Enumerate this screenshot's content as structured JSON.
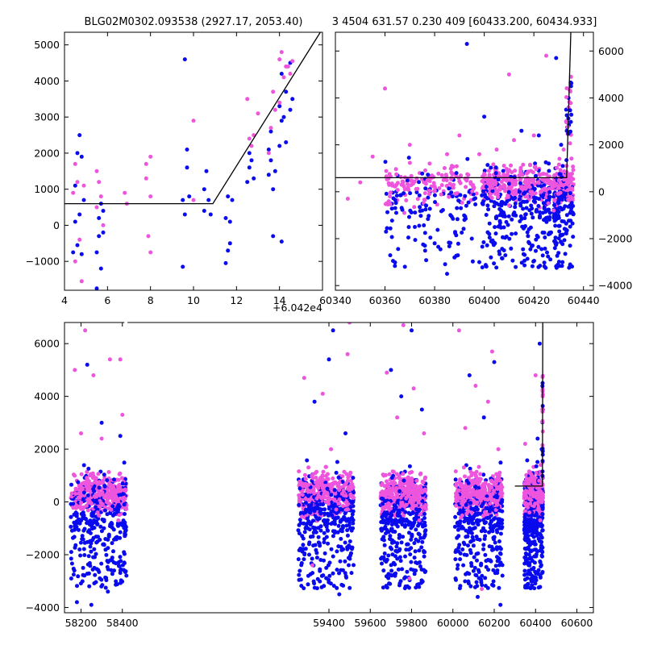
{
  "figure_title_left": "BLG02M0302.093538 (2927.17, 2053.40)",
  "figure_title_right": "3 4504 631.57 0.230 409 [60433.200, 60434.933]",
  "colors": {
    "blue": "#0a0aee",
    "pink": "#ee55dd",
    "line": "#000000"
  },
  "chart_data": [
    {
      "id": "top_left",
      "type": "scatter",
      "title": "BLG02M0302.093538 (2927.17, 2053.40)",
      "x_offset_label": "+6.042e4",
      "xlim": [
        4,
        16
      ],
      "ylim": [
        -1800,
        5350
      ],
      "xticks": [
        4,
        6,
        8,
        10,
        12,
        14
      ],
      "yticks": [
        -1000,
        0,
        1000,
        2000,
        3000,
        4000,
        5000
      ],
      "series": [
        {
          "color": "blue",
          "points": [
            [
              4.4,
              -750
            ],
            [
              4.5,
              100
            ],
            [
              4.5,
              1100
            ],
            [
              4.6,
              2000
            ],
            [
              4.6,
              -550
            ],
            [
              4.7,
              2500
            ],
            [
              4.7,
              300
            ],
            [
              4.8,
              1900
            ],
            [
              4.8,
              -800
            ],
            [
              4.9,
              700
            ],
            [
              5.5,
              -1750
            ],
            [
              5.5,
              -750
            ],
            [
              5.6,
              -300
            ],
            [
              5.6,
              200
            ],
            [
              5.7,
              -1200
            ],
            [
              5.7,
              600
            ],
            [
              5.8,
              -200
            ],
            [
              5.8,
              400
            ],
            [
              9.5,
              700
            ],
            [
              9.5,
              -1150
            ],
            [
              9.6,
              4600
            ],
            [
              9.6,
              300
            ],
            [
              9.7,
              1600
            ],
            [
              9.7,
              2100
            ],
            [
              9.8,
              800
            ],
            [
              10.5,
              1000
            ],
            [
              10.5,
              400
            ],
            [
              10.6,
              1500
            ],
            [
              10.7,
              700
            ],
            [
              10.8,
              300
            ],
            [
              11.5,
              -1050
            ],
            [
              11.5,
              200
            ],
            [
              11.6,
              -700
            ],
            [
              11.6,
              800
            ],
            [
              11.7,
              -500
            ],
            [
              11.7,
              100
            ],
            [
              11.8,
              700
            ],
            [
              12.5,
              1200
            ],
            [
              12.6,
              1600
            ],
            [
              12.6,
              2000
            ],
            [
              12.7,
              1800
            ],
            [
              12.8,
              1300
            ],
            [
              13.5,
              1400
            ],
            [
              13.5,
              2100
            ],
            [
              13.6,
              1800
            ],
            [
              13.6,
              2600
            ],
            [
              13.7,
              1000
            ],
            [
              13.7,
              -300
            ],
            [
              13.8,
              1500
            ],
            [
              14.0,
              2200
            ],
            [
              14.0,
              3300
            ],
            [
              14.1,
              2900
            ],
            [
              14.1,
              4200
            ],
            [
              14.1,
              -450
            ],
            [
              14.2,
              3000
            ],
            [
              14.3,
              3700
            ],
            [
              14.3,
              2300
            ],
            [
              14.5,
              3200
            ],
            [
              14.5,
              4500
            ],
            [
              14.6,
              3500
            ]
          ]
        },
        {
          "color": "pink",
          "points": [
            [
              4.4,
              900
            ],
            [
              4.5,
              1700
            ],
            [
              4.5,
              -1000
            ],
            [
              4.6,
              1200
            ],
            [
              4.7,
              -400
            ],
            [
              4.8,
              -1550
            ],
            [
              4.9,
              1100
            ],
            [
              5.5,
              1500
            ],
            [
              5.5,
              500
            ],
            [
              5.6,
              1200
            ],
            [
              5.7,
              800
            ],
            [
              5.8,
              0
            ],
            [
              6.8,
              900
            ],
            [
              6.9,
              600
            ],
            [
              7.8,
              1300
            ],
            [
              7.8,
              1700
            ],
            [
              7.9,
              -300
            ],
            [
              8.0,
              1900
            ],
            [
              8.0,
              -750
            ],
            [
              8.0,
              800
            ],
            [
              10.0,
              2900
            ],
            [
              10.0,
              700
            ],
            [
              12.5,
              3500
            ],
            [
              12.6,
              2400
            ],
            [
              12.7,
              2200
            ],
            [
              12.8,
              2500
            ],
            [
              13.0,
              3100
            ],
            [
              13.5,
              2000
            ],
            [
              13.6,
              2700
            ],
            [
              13.7,
              3700
            ],
            [
              13.8,
              3200
            ],
            [
              14.0,
              3400
            ],
            [
              14.0,
              4600
            ],
            [
              14.1,
              4800
            ],
            [
              14.2,
              4100
            ],
            [
              14.3,
              4400
            ],
            [
              14.4,
              4400
            ],
            [
              14.5,
              4200
            ],
            [
              14.6,
              4550
            ]
          ]
        }
      ],
      "fit_line": [
        [
          4,
          600
        ],
        [
          10.9,
          600
        ],
        [
          15.9,
          5350
        ]
      ]
    },
    {
      "id": "top_right",
      "type": "scatter",
      "title": "3 4504 631.57 0.230 409 [60433.200, 60434.933]",
      "xlim": [
        60340,
        60444
      ],
      "ylim": [
        -4200,
        6800
      ],
      "xticks": [
        60340,
        60360,
        60380,
        60400,
        60420,
        60440
      ],
      "yticks": [
        -4000,
        -2000,
        0,
        2000,
        4000,
        6000
      ],
      "y_axis_side": "right",
      "band_segments": [
        [
          60360,
          60397
        ],
        [
          60399,
          60413
        ],
        [
          60414,
          60427
        ],
        [
          60428,
          60436
        ]
      ],
      "outliers": [
        {
          "color": "blue",
          "points": [
            [
              60368,
              -3200
            ],
            [
              60372,
              -1500
            ],
            [
              60375,
              -800
            ],
            [
              60380,
              -2200
            ],
            [
              60385,
              -3500
            ],
            [
              60388,
              -2800
            ],
            [
              60392,
              -1200
            ],
            [
              60393,
              6300
            ],
            [
              60395,
              -2000
            ],
            [
              60398,
              -3000
            ],
            [
              60400,
              3200
            ],
            [
              60402,
              -1800
            ],
            [
              60405,
              -500
            ],
            [
              60408,
              -2500
            ],
            [
              60412,
              -1000
            ],
            [
              60415,
              2600
            ],
            [
              60418,
              -1600
            ],
            [
              60420,
              -400
            ],
            [
              60422,
              2400
            ],
            [
              60424,
              -1200
            ],
            [
              60426,
              1200
            ],
            [
              60429,
              5700
            ],
            [
              60431,
              2000
            ],
            [
              60433,
              3500
            ],
            [
              60434,
              4000
            ],
            [
              60435,
              4500
            ]
          ]
        },
        {
          "color": "pink",
          "points": [
            [
              60345,
              -300
            ],
            [
              60350,
              400
            ],
            [
              60355,
              1500
            ],
            [
              60360,
              4400
            ],
            [
              60362,
              300
            ],
            [
              60370,
              2000
            ],
            [
              60378,
              1200
            ],
            [
              60385,
              1600
            ],
            [
              60390,
              2400
            ],
            [
              60398,
              1600
            ],
            [
              60405,
              1800
            ],
            [
              60410,
              5000
            ],
            [
              60412,
              2200
            ],
            [
              60420,
              2400
            ],
            [
              60425,
              5800
            ],
            [
              60428,
              -800
            ],
            [
              60432,
              1800
            ],
            [
              60433,
              3000
            ],
            [
              60434,
              3600
            ],
            [
              60435,
              4900
            ]
          ]
        }
      ],
      "fit_line": [
        [
          60340,
          600
        ],
        [
          60433.2,
          600
        ],
        [
          60434.9,
          6800
        ]
      ]
    },
    {
      "id": "bottom",
      "type": "scatter",
      "xlim": [
        58120,
        60680
      ],
      "ylim": [
        -4200,
        6800
      ],
      "xticks": [
        58200,
        58400,
        59400,
        59600,
        59800,
        60000,
        60200,
        60400,
        60600
      ],
      "yticks": [
        -4000,
        -2000,
        0,
        2000,
        4000,
        6000
      ],
      "top_axis_gap": [
        58410,
        58425
      ],
      "season_bands": [
        [
          58150,
          58420
        ],
        [
          59250,
          59520
        ],
        [
          59650,
          59870
        ],
        [
          60010,
          60240
        ],
        [
          60345,
          60436
        ]
      ],
      "outliers": [
        {
          "color": "blue",
          "points": [
            [
              58180,
              -3800
            ],
            [
              58210,
              -2500
            ],
            [
              58230,
              5200
            ],
            [
              58250,
              -3900
            ],
            [
              58280,
              -1500
            ],
            [
              58300,
              3000
            ],
            [
              58330,
              -3400
            ],
            [
              58360,
              -2600
            ],
            [
              58390,
              2500
            ],
            [
              59300,
              -2800
            ],
            [
              59330,
              3800
            ],
            [
              59360,
              -2200
            ],
            [
              59400,
              5400
            ],
            [
              59420,
              6500
            ],
            [
              59450,
              -3500
            ],
            [
              59480,
              2600
            ],
            [
              59700,
              5000
            ],
            [
              59720,
              -2800
            ],
            [
              59750,
              4000
            ],
            [
              59780,
              -3200
            ],
            [
              59800,
              6500
            ],
            [
              59820,
              -2600
            ],
            [
              59850,
              3500
            ],
            [
              60050,
              -2400
            ],
            [
              60080,
              4800
            ],
            [
              60120,
              -3600
            ],
            [
              60150,
              3200
            ],
            [
              60170,
              -2200
            ],
            [
              60200,
              5300
            ],
            [
              60230,
              -3900
            ],
            [
              60380,
              -3000
            ],
            [
              60395,
              -1500
            ],
            [
              60410,
              2400
            ],
            [
              60420,
              6000
            ],
            [
              60430,
              2000
            ],
            [
              60435,
              3500
            ]
          ]
        },
        {
          "color": "pink",
          "points": [
            [
              58170,
              5000
            ],
            [
              58200,
              2600
            ],
            [
              58220,
              6500
            ],
            [
              58260,
              4800
            ],
            [
              58300,
              2400
            ],
            [
              58340,
              5400
            ],
            [
              58390,
              5400
            ],
            [
              58400,
              3300
            ],
            [
              59280,
              4700
            ],
            [
              59320,
              -2400
            ],
            [
              59370,
              4100
            ],
            [
              59410,
              2000
            ],
            [
              59490,
              5600
            ],
            [
              59500,
              6800
            ],
            [
              59680,
              4900
            ],
            [
              59730,
              3200
            ],
            [
              59760,
              6700
            ],
            [
              59790,
              -2900
            ],
            [
              59810,
              4300
            ],
            [
              59860,
              2600
            ],
            [
              60030,
              6500
            ],
            [
              60060,
              2800
            ],
            [
              60110,
              4400
            ],
            [
              60140,
              -3300
            ],
            [
              60170,
              3800
            ],
            [
              60190,
              5700
            ],
            [
              60220,
              2000
            ],
            [
              60350,
              2200
            ],
            [
              60370,
              -400
            ],
            [
              60400,
              4800
            ],
            [
              60425,
              1400
            ],
            [
              60434,
              4200
            ]
          ]
        }
      ],
      "fit_line": [
        [
          60300,
          600
        ],
        [
          60433.2,
          600
        ],
        [
          60434.9,
          6800
        ]
      ]
    }
  ]
}
